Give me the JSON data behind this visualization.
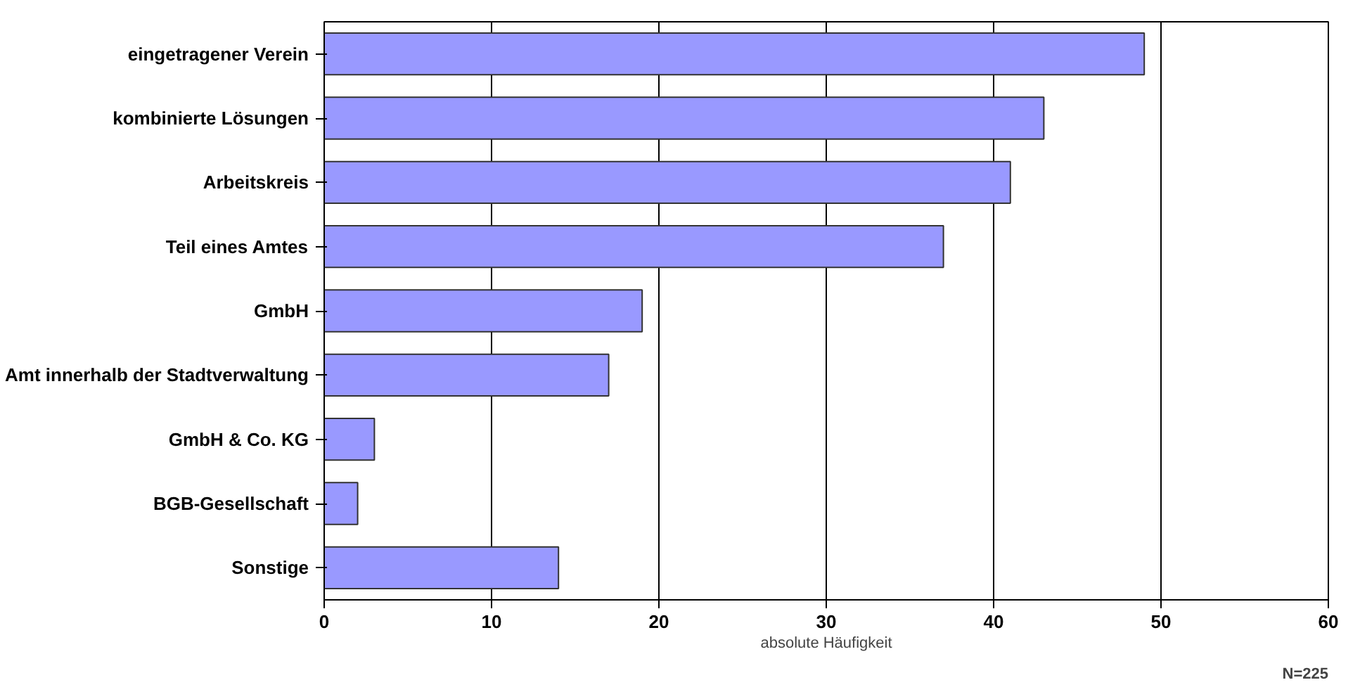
{
  "chart_data": {
    "type": "bar",
    "orientation": "horizontal",
    "xlabel": "absolute Häufigkeit",
    "categories": [
      "eingetragener Verein",
      "kombinierte Lösungen",
      "Arbeitskreis",
      "Teil eines Amtes",
      "GmbH",
      "Amt innerhalb der Stadtverwaltung",
      "GmbH & Co. KG",
      "BGB-Gesellschaft",
      "Sonstige"
    ],
    "values": [
      49,
      43,
      41,
      37,
      19,
      17,
      3,
      2,
      14
    ],
    "color": "#9999ff",
    "xlim": [
      0,
      60
    ],
    "xticks": [
      0,
      10,
      20,
      30,
      40,
      50,
      60
    ],
    "grid": "x",
    "annotations": [
      "N=225"
    ]
  }
}
